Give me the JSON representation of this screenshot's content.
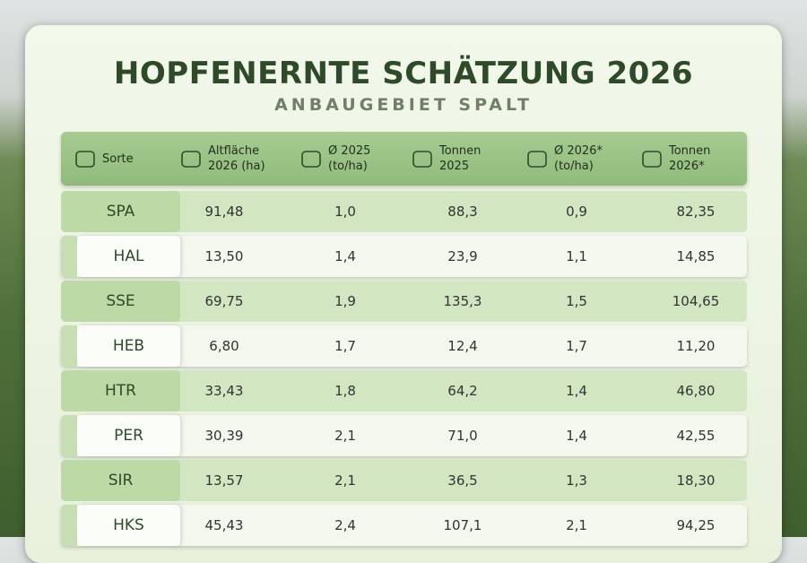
{
  "header": {
    "title": "HOPFENERNTE SCHÄTZUNG 2026",
    "subtitle": "ANBAUGEBIET SPALT"
  },
  "table": {
    "columns": [
      [
        "Sorte"
      ],
      [
        "Altfläche",
        "2026 (ha)"
      ],
      [
        "Ø 2025",
        "(to/ha)"
      ],
      [
        "Tonnen",
        "2025"
      ],
      [
        "Ø 2026*",
        "(to/ha)"
      ],
      [
        "Tonnen",
        "2026*"
      ]
    ],
    "rows": [
      [
        "SPA",
        "91,48",
        "1,0",
        "88,3",
        "0,9",
        "82,35"
      ],
      [
        "HAL",
        "13,50",
        "1,4",
        "23,9",
        "1,1",
        "14,85"
      ],
      [
        "SSE",
        "69,75",
        "1,9",
        "135,3",
        "1,5",
        "104,65"
      ],
      [
        "HEB",
        "6,80",
        "1,7",
        "12,4",
        "1,7",
        "11,20"
      ],
      [
        "HTR",
        "33,43",
        "1,8",
        "64,2",
        "1,4",
        "46,80"
      ],
      [
        "PER",
        "30,39",
        "2,1",
        "71,0",
        "1,4",
        "42,55"
      ],
      [
        "SIR",
        "13,57",
        "2,1",
        "36,5",
        "1,3",
        "18,30"
      ],
      [
        "HKS",
        "45,43",
        "2,4",
        "107,1",
        "2,1",
        "94,25"
      ]
    ]
  }
}
